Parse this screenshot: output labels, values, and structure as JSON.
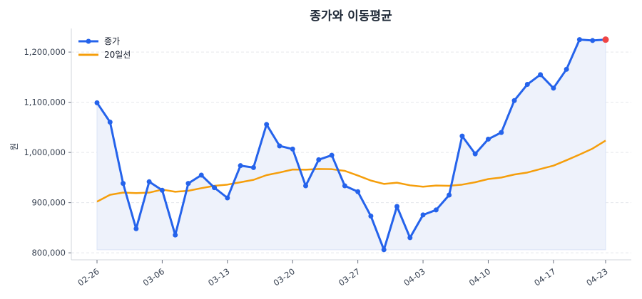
{
  "chart_data": {
    "type": "line",
    "title": "종가와 이동평균",
    "xlabel": "",
    "ylabel": "원",
    "ylim": [
      786000,
      1247000
    ],
    "yticks": [
      800000,
      900000,
      1000000,
      1100000,
      1200000
    ],
    "ytick_labels": [
      "800,000",
      "900,000",
      "1,000,000",
      "1,100,000",
      "1,200,000"
    ],
    "x_ticks": [
      {
        "index": 0,
        "label": "02-26"
      },
      {
        "index": 5,
        "label": "03-06"
      },
      {
        "index": 10,
        "label": "03-13"
      },
      {
        "index": 15,
        "label": "03-20"
      },
      {
        "index": 20,
        "label": "03-27"
      },
      {
        "index": 25,
        "label": "04-03"
      },
      {
        "index": 30,
        "label": "04-10"
      },
      {
        "index": 35,
        "label": "04-17"
      },
      {
        "index": 39,
        "label": "04-23"
      }
    ],
    "grid": "horizontal dashed",
    "legend": "top-left",
    "series": [
      {
        "name": "종가",
        "color": "#2563eb",
        "markers": true,
        "fill_below": "#eef2fb",
        "values": [
          1099000,
          1060500,
          938300,
          848000,
          941600,
          924600,
          835400,
          938300,
          954800,
          929800,
          909400,
          973700,
          969900,
          1055800,
          1013000,
          1006700,
          933500,
          985500,
          994400,
          933500,
          921800,
          873200,
          806100,
          892400,
          830100,
          875500,
          885400,
          915100,
          1032600,
          997200,
          1026500,
          1039700,
          1103400,
          1135600,
          1155000,
          1128100,
          1165700,
          1224800,
          1223000,
          1224800
        ],
        "last_marker_color": "#ef4444"
      },
      {
        "name": "20일선",
        "color": "#f59e0b",
        "markers": false,
        "values": [
          902000,
          915600,
          920000,
          919000,
          920000,
          926000,
          921700,
          923600,
          928800,
          933500,
          935900,
          940600,
          945400,
          954800,
          960000,
          966000,
          965600,
          967000,
          966600,
          963300,
          954000,
          944000,
          937300,
          939700,
          934500,
          931700,
          934000,
          933500,
          935900,
          940600,
          947000,
          950000,
          956000,
          960000,
          967000,
          973700,
          984500,
          995800,
          1007700,
          1023700
        ]
      }
    ]
  }
}
